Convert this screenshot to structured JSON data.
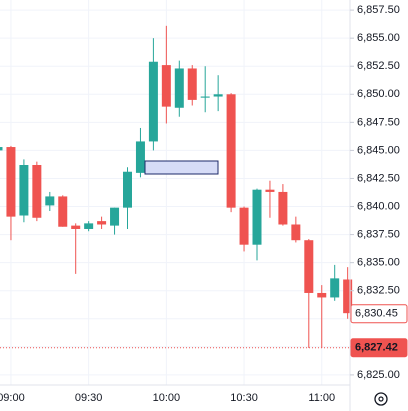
{
  "chart_data": {
    "type": "candlestick",
    "x": [
      null,
      "09:00",
      null,
      null,
      null,
      null,
      null,
      "09:30",
      null,
      null,
      null,
      null,
      null,
      "10:00",
      null,
      null,
      null,
      null,
      null,
      "10:30",
      null,
      null,
      null,
      null,
      null,
      "11:00",
      null,
      null
    ],
    "open": [
      6845.0,
      6845.3,
      6839.2,
      6843.7,
      6840.1,
      6840.9,
      6838.3,
      6838.0,
      6838.7,
      6838.3,
      6839.9,
      6843.0,
      6845.8,
      6852.6,
      6848.8,
      6852.3,
      6849.7,
      6849.8,
      6850.0,
      6839.9,
      6836.6,
      6841.5,
      6841.3,
      6838.4,
      6837.0,
      6832.3,
      6831.9,
      6833.5
    ],
    "high": [
      6845.5,
      6845.4,
      6844.2,
      6844.0,
      6841.3,
      6841.0,
      6838.5,
      6838.7,
      6839.1,
      6839.9,
      6843.5,
      6847.0,
      6855.0,
      6856.1,
      6853.0,
      6852.6,
      6852.5,
      6851.7,
      6850.1,
      6840.0,
      6841.6,
      6842.3,
      6842.0,
      6839.1,
      6837.1,
      6833.0,
      6834.8,
      6834.6
    ],
    "low": [
      6844.8,
      6837.0,
      6838.6,
      6838.7,
      6839.6,
      6838.2,
      6834.0,
      6837.8,
      6838.0,
      6837.5,
      6838.0,
      6842.6,
      6845.0,
      6847.4,
      6848.0,
      6849.0,
      6848.4,
      6848.5,
      6839.5,
      6836.0,
      6835.2,
      6839.0,
      6838.3,
      6836.8,
      6827.4,
      6827.4,
      6831.6,
      6830.0
    ],
    "close": [
      6845.3,
      6839.1,
      6843.7,
      6839.0,
      6840.9,
      6838.2,
      6838.0,
      6838.5,
      6838.4,
      6839.9,
      6843.1,
      6845.8,
      6852.9,
      6848.9,
      6852.3,
      6849.5,
      6849.8,
      6850.0,
      6839.9,
      6836.6,
      6841.5,
      6841.3,
      6838.4,
      6837.0,
      6832.3,
      6831.9,
      6833.6,
      6830.5
    ],
    "up_color": "#26a69a",
    "down_color": "#ef5350",
    "ylim": [
      6824.1,
      6858.4
    ],
    "yticks": [
      {
        "value": 6825,
        "label": "6,825.00"
      },
      {
        "value": 6827.5,
        "label": "6,827.50"
      },
      {
        "value": 6830,
        "label": "6,830.00"
      },
      {
        "value": 6832.5,
        "label": "6,832.50"
      },
      {
        "value": 6835,
        "label": "6,835.00"
      },
      {
        "value": 6837.5,
        "label": "6,837.50"
      },
      {
        "value": 6840,
        "label": "6,840.00"
      },
      {
        "value": 6842.5,
        "label": "6,842.50"
      },
      {
        "value": 6845,
        "label": "6,845.00"
      },
      {
        "value": 6847.5,
        "label": "6,847.50"
      },
      {
        "value": 6850,
        "label": "6,850.00"
      },
      {
        "value": 6852.5,
        "label": "6,852.50"
      },
      {
        "value": 6855,
        "label": "6,855.00"
      },
      {
        "value": 6857.5,
        "label": "6,857.50"
      }
    ],
    "price_labels": [
      {
        "value": 6830.45,
        "label": "6,830.45",
        "style": "outline"
      },
      {
        "value": 6827.42,
        "label": "6,827.42",
        "style": "filled"
      }
    ],
    "grid": true
  }
}
